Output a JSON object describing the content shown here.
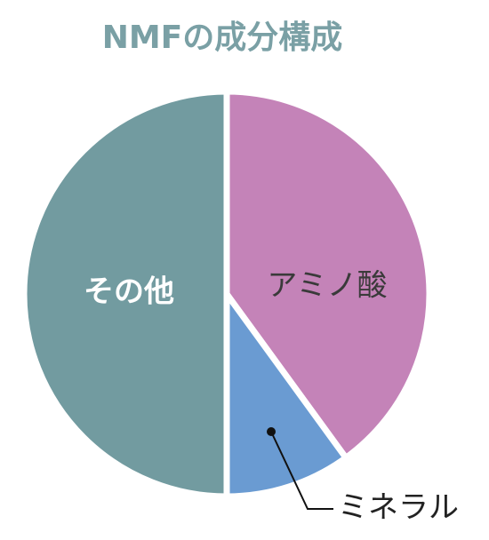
{
  "chart_data": {
    "type": "pie",
    "title": "NMFの成分構成",
    "categories": [
      "アミノ酸",
      "ミネラル",
      "その他"
    ],
    "values": [
      40,
      10,
      50
    ],
    "colors": [
      "#c483b8",
      "#6a9bd2",
      "#729ba0"
    ]
  }
}
